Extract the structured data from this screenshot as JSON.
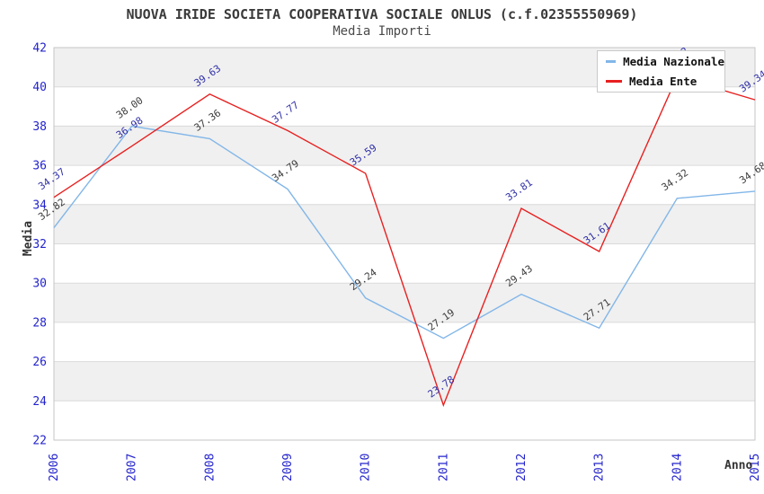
{
  "header": {
    "title": "NUOVA IRIDE SOCIETA COOPERATIVA SOCIALE ONLUS (c.f.02355550969)",
    "subtitle": "Media Importi"
  },
  "axes": {
    "y_label": "Media",
    "x_label": "Anno"
  },
  "legend": {
    "items": [
      {
        "label": "Media Nazionale",
        "color": "#82b6e8"
      },
      {
        "label": "Media Ente",
        "color": "#e82020"
      }
    ]
  },
  "colors": {
    "band": "#f0f0f0",
    "grid": "#dadada",
    "border": "#c6c6c6",
    "tick_label": "#2323cd"
  },
  "chart_data": {
    "type": "line",
    "title": "Media Importi",
    "categories": [
      "2006",
      "2007",
      "2008",
      "2009",
      "2010",
      "2011",
      "2012",
      "2013",
      "2014",
      "2015"
    ],
    "series": [
      {
        "key": "media-nazionale",
        "name": "Media Nazionale",
        "color": "#82b6e8",
        "label_color": "#3c3c3c",
        "values": [
          32.82,
          38.0,
          37.36,
          34.79,
          29.24,
          27.19,
          29.43,
          27.71,
          34.32,
          34.68
        ],
        "labels": [
          "32.82",
          "38.00",
          "37.36",
          "34.79",
          "29.24",
          "27.19",
          "29.43",
          "27.71",
          "34.32",
          "34.68"
        ]
      },
      {
        "key": "media-ente",
        "name": "Media Ente",
        "color": "#e82020",
        "label_color": "#3030a8",
        "values": [
          34.37,
          36.98,
          39.63,
          37.77,
          35.59,
          23.78,
          33.81,
          31.61,
          40.52,
          39.34
        ],
        "labels": [
          "34.37",
          "36.98",
          "39.63",
          "37.77",
          "35.59",
          "23.78",
          "33.81",
          "31.61",
          "40.52",
          "39.34"
        ]
      }
    ],
    "ylim": [
      22,
      42
    ],
    "y_ticks": [
      22,
      24,
      26,
      28,
      30,
      32,
      34,
      36,
      38,
      40,
      42
    ],
    "grid": "horizontal, alternating shaded bands every 2 units",
    "legend_position": "top-right, overlapping plot (hides Media Ente 2014 point)",
    "notes": "Media Ente 2014 point and its label are occluded by the legend box; value estimated from line slopes (~40.5)."
  }
}
